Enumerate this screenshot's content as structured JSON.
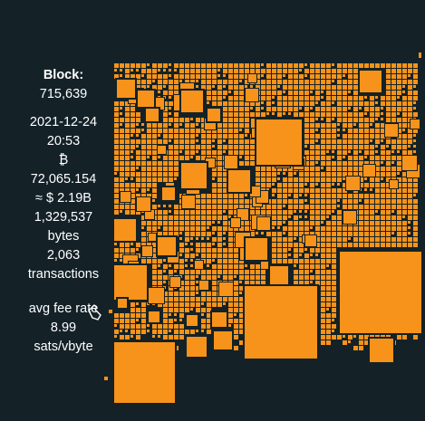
{
  "block": {
    "label": "Block:",
    "height": "715,639",
    "date": "2021-12-24",
    "time": "20:53",
    "btc_symbol": "₿",
    "btc_amount": "72,065.154",
    "usd_value": "≈ $ 2.19B",
    "size_value": "1,329,537",
    "size_unit": "bytes",
    "tx_count": "2,063",
    "tx_unit": "transactions",
    "fee_label": "avg fee rate",
    "fee_value": "8.99",
    "fee_unit": "sats/vbyte"
  },
  "colors": {
    "background": "#142228",
    "tx_square": "#f7931a",
    "text": "#ffffff"
  },
  "icons": {
    "cursor": "pointer-hand-icon"
  }
}
